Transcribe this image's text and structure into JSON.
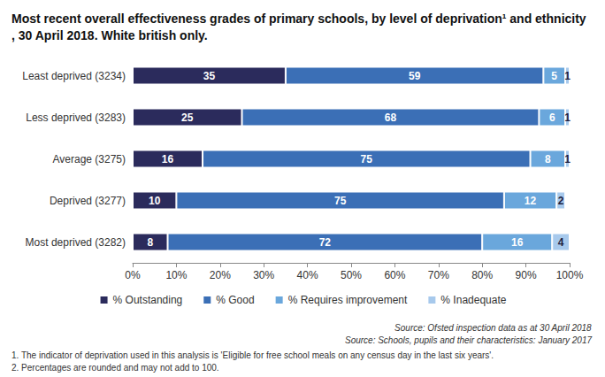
{
  "chart_data": {
    "type": "bar",
    "orientation": "horizontal",
    "stacked": true,
    "data_labels": true,
    "grid": false,
    "legend": "bottom",
    "title": "Most recent overall effectiveness grades of primary schools, by level of deprivation¹ and ethnicity, 30 April 2018. White british only.",
    "categories": [
      "Least deprived (3234)",
      "Less deprived (3283)",
      "Average (3275)",
      "Deprived (3277)",
      "Most deprived (3282)"
    ],
    "series": [
      {
        "name": "% Outstanding",
        "color": "#2b2b5c",
        "values": [
          35,
          25,
          16,
          10,
          8
        ]
      },
      {
        "name": "% Good",
        "color": "#3b6fb6",
        "values": [
          59,
          68,
          75,
          75,
          72
        ]
      },
      {
        "name": "% Requires improvement",
        "color": "#6aa7dc",
        "values": [
          5,
          6,
          8,
          12,
          16
        ]
      },
      {
        "name": "% Inadequate",
        "color": "#a7c9ec",
        "values": [
          1,
          1,
          1,
          2,
          4
        ]
      }
    ],
    "xlim": [
      0,
      100
    ],
    "xticks": [
      {
        "value": 0,
        "label": "0%"
      },
      {
        "value": 10,
        "label": "10%"
      },
      {
        "value": 20,
        "label": "20%"
      },
      {
        "value": 30,
        "label": "30%"
      },
      {
        "value": 40,
        "label": "40%"
      },
      {
        "value": 50,
        "label": "50%"
      },
      {
        "value": 60,
        "label": "60%"
      },
      {
        "value": 70,
        "label": "70%"
      },
      {
        "value": 80,
        "label": "80%"
      },
      {
        "value": 90,
        "label": "90%"
      },
      {
        "value": 100,
        "label": "100%"
      }
    ],
    "sources": [
      "Source: Ofsted inspection data as at 30 April 2018",
      "Source: Schools, pupils and their characteristics: January 2017"
    ],
    "footnotes": [
      "1. The indicator of deprivation used in this analysis is 'Eligible for free school meals on any census day in the last six years'.",
      "2. Percentages are rounded and may not add to 100."
    ]
  }
}
